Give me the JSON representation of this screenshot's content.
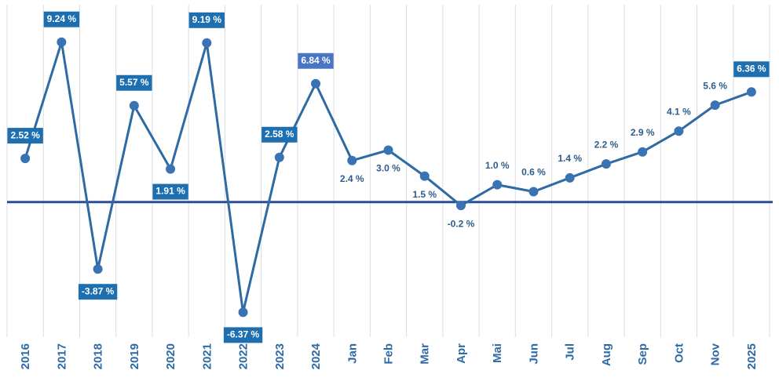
{
  "chart_data": {
    "type": "line",
    "title": "",
    "xlabel": "",
    "ylabel": "",
    "categories": [
      "2016",
      "2017",
      "2018",
      "2019",
      "2020",
      "2021",
      "2022",
      "2023",
      "2024",
      "Jan",
      "Feb",
      "Mar",
      "Apr",
      "Mai",
      "Jun",
      "Jul",
      "Aug",
      "Sep",
      "Oct",
      "Nov",
      "2025"
    ],
    "series": [
      {
        "values": [
          2.52,
          9.24,
          -3.87,
          5.57,
          1.91,
          9.19,
          -6.37,
          2.58,
          6.84,
          2.4,
          3.0,
          1.5,
          -0.2,
          1.0,
          0.6,
          1.4,
          2.2,
          2.9,
          4.1,
          5.6,
          6.36
        ]
      }
    ],
    "data_labels": [
      "2.52 %",
      "9.24 %",
      "-3.87 %",
      "5.57 %",
      "1.91 %",
      "9.19 %",
      "-6.37 %",
      "2.58 %",
      "6.84 %",
      "2.4 %",
      "3.0 %",
      "1.5 %",
      "-0.2 %",
      "1.0 %",
      "0.6 %",
      "1.4 %",
      "2.2 %",
      "2.9 %",
      "4.1 %",
      "5.6 %",
      "6.36 %"
    ],
    "label_style": [
      "box",
      "box",
      "box",
      "box",
      "box",
      "box",
      "box",
      "box",
      "box-highlight",
      "plain",
      "plain",
      "plain",
      "plain",
      "plain",
      "plain",
      "plain",
      "plain",
      "plain",
      "plain",
      "plain",
      "box"
    ],
    "label_position": [
      "above",
      "above",
      "below",
      "above",
      "below",
      "above",
      "below",
      "above",
      "above",
      "below",
      "below",
      "below",
      "below",
      "above",
      "above",
      "above",
      "above",
      "above",
      "above",
      "above",
      "above"
    ],
    "ylim": [
      -7.8,
      11.4
    ],
    "zero_line": true,
    "grid": "vertical",
    "legend": "none",
    "colors": {
      "line": "#2e6aa3",
      "marker": "#3a73b4",
      "zero_line": "#2e4f8f",
      "label_box": "#1d6fb0",
      "label_box_highlight": "#4a74c4",
      "label_text_box": "#ffffff",
      "label_text_plain": "#2e5d8c",
      "tick_text": "#2e6aa3",
      "grid": "#d9dde3"
    }
  }
}
